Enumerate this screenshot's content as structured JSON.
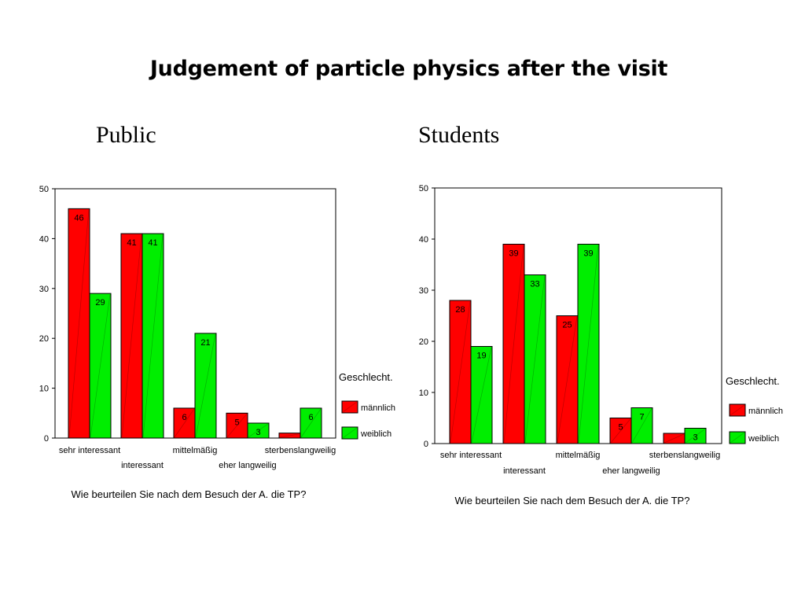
{
  "title": "Judgement of particle physics after the visit",
  "colors": {
    "maennlich": "#ff0000",
    "weiblich": "#00ee00"
  },
  "chart_data": [
    {
      "type": "bar",
      "panel_title": "Public",
      "xlabel": "Wie beurteilen Sie nach dem Besuch der A. die TP?",
      "ylabel": "",
      "ylim": [
        0,
        50
      ],
      "yticks": [
        "0",
        "10",
        "20",
        "30",
        "40",
        "50"
      ],
      "categories": [
        "sehr interessant",
        "interessant",
        "mittelmäßig",
        "eher langweilig",
        "sterbenslangweilig"
      ],
      "legend_title": "Geschlecht.",
      "legend_position": "right",
      "grid": false,
      "series": [
        {
          "name": "männlich",
          "values": [
            46,
            41,
            6,
            5,
            1
          ],
          "labels": [
            "46",
            "41",
            "6",
            "5",
            ""
          ]
        },
        {
          "name": "weiblich",
          "values": [
            29,
            41,
            21,
            3,
            6
          ],
          "labels": [
            "29",
            "41",
            "21",
            "3",
            "6"
          ]
        }
      ]
    },
    {
      "type": "bar",
      "panel_title": "Students",
      "xlabel": "Wie beurteilen Sie nach dem Besuch der A. die TP?",
      "ylabel": "",
      "ylim": [
        0,
        50
      ],
      "yticks": [
        "0",
        "10",
        "20",
        "30",
        "40",
        "50"
      ],
      "categories": [
        "sehr interessant",
        "interessant",
        "mittelmäßig",
        "eher langweilig",
        "sterbenslangweilig"
      ],
      "legend_title": "Geschlecht.",
      "legend_position": "right",
      "grid": false,
      "series": [
        {
          "name": "männlich",
          "values": [
            28,
            39,
            25,
            5,
            2
          ],
          "labels": [
            "28",
            "39",
            "25",
            "5",
            ""
          ]
        },
        {
          "name": "weiblich",
          "values": [
            19,
            33,
            39,
            7,
            3
          ],
          "labels": [
            "19",
            "33",
            "39",
            "7",
            "3"
          ]
        }
      ]
    }
  ]
}
